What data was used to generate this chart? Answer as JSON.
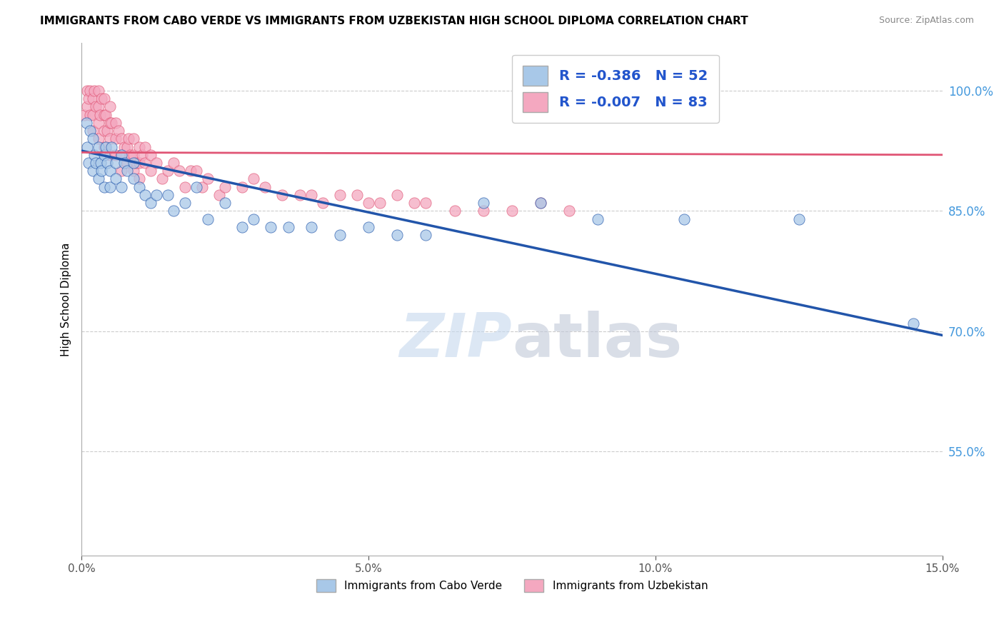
{
  "title": "IMMIGRANTS FROM CABO VERDE VS IMMIGRANTS FROM UZBEKISTAN HIGH SCHOOL DIPLOMA CORRELATION CHART",
  "source": "Source: ZipAtlas.com",
  "ylabel": "High School Diploma",
  "legend_label1": "Immigrants from Cabo Verde",
  "legend_label2": "Immigrants from Uzbekistan",
  "r1": -0.386,
  "n1": 52,
  "r2": -0.007,
  "n2": 83,
  "xmin": 0.0,
  "xmax": 0.15,
  "ymin": 0.42,
  "ymax": 1.06,
  "y_ticks": [
    0.55,
    0.7,
    0.85,
    1.0
  ],
  "x_ticks": [
    0.0,
    0.05,
    0.1,
    0.15
  ],
  "color_blue": "#a8c8e8",
  "color_pink": "#f4a8c0",
  "line_blue": "#2255aa",
  "line_pink": "#e05575",
  "watermark_zip": "ZIP",
  "watermark_atlas": "atlas",
  "cabo_verde_x": [
    0.0008,
    0.001,
    0.0012,
    0.0015,
    0.002,
    0.002,
    0.0022,
    0.0025,
    0.003,
    0.003,
    0.0033,
    0.0035,
    0.004,
    0.004,
    0.0042,
    0.0045,
    0.005,
    0.005,
    0.0052,
    0.006,
    0.006,
    0.007,
    0.007,
    0.0075,
    0.008,
    0.009,
    0.009,
    0.01,
    0.011,
    0.012,
    0.013,
    0.015,
    0.016,
    0.018,
    0.02,
    0.022,
    0.025,
    0.028,
    0.03,
    0.033,
    0.036,
    0.04,
    0.045,
    0.05,
    0.055,
    0.06,
    0.07,
    0.08,
    0.09,
    0.105,
    0.125,
    0.145
  ],
  "cabo_verde_y": [
    0.96,
    0.93,
    0.91,
    0.95,
    0.94,
    0.9,
    0.92,
    0.91,
    0.93,
    0.89,
    0.91,
    0.9,
    0.92,
    0.88,
    0.93,
    0.91,
    0.9,
    0.88,
    0.93,
    0.91,
    0.89,
    0.92,
    0.88,
    0.91,
    0.9,
    0.91,
    0.89,
    0.88,
    0.87,
    0.86,
    0.87,
    0.87,
    0.85,
    0.86,
    0.88,
    0.84,
    0.86,
    0.83,
    0.84,
    0.83,
    0.83,
    0.83,
    0.82,
    0.83,
    0.82,
    0.82,
    0.86,
    0.86,
    0.84,
    0.84,
    0.84,
    0.71
  ],
  "uzbekistan_x": [
    0.0005,
    0.001,
    0.001,
    0.0012,
    0.0015,
    0.0015,
    0.002,
    0.002,
    0.002,
    0.0022,
    0.0025,
    0.003,
    0.003,
    0.003,
    0.003,
    0.0032,
    0.0035,
    0.004,
    0.004,
    0.004,
    0.004,
    0.0042,
    0.0045,
    0.005,
    0.005,
    0.005,
    0.005,
    0.0052,
    0.006,
    0.006,
    0.006,
    0.0065,
    0.007,
    0.007,
    0.007,
    0.0075,
    0.008,
    0.008,
    0.0082,
    0.0085,
    0.009,
    0.009,
    0.009,
    0.0095,
    0.01,
    0.01,
    0.01,
    0.0105,
    0.011,
    0.011,
    0.012,
    0.012,
    0.013,
    0.014,
    0.015,
    0.016,
    0.017,
    0.018,
    0.019,
    0.02,
    0.021,
    0.022,
    0.024,
    0.025,
    0.028,
    0.03,
    0.032,
    0.035,
    0.038,
    0.04,
    0.042,
    0.045,
    0.048,
    0.05,
    0.052,
    0.055,
    0.058,
    0.06,
    0.065,
    0.07,
    0.075,
    0.08,
    0.085
  ],
  "uzbekistan_y": [
    0.97,
    1.0,
    0.98,
    0.99,
    1.0,
    0.97,
    0.99,
    0.97,
    0.95,
    1.0,
    0.98,
    1.0,
    0.98,
    0.96,
    0.94,
    0.97,
    0.99,
    0.99,
    0.97,
    0.95,
    0.93,
    0.97,
    0.95,
    0.98,
    0.96,
    0.94,
    0.92,
    0.96,
    0.96,
    0.94,
    0.92,
    0.95,
    0.94,
    0.92,
    0.9,
    0.93,
    0.93,
    0.91,
    0.94,
    0.92,
    0.94,
    0.92,
    0.9,
    0.91,
    0.93,
    0.91,
    0.89,
    0.92,
    0.93,
    0.91,
    0.92,
    0.9,
    0.91,
    0.89,
    0.9,
    0.91,
    0.9,
    0.88,
    0.9,
    0.9,
    0.88,
    0.89,
    0.87,
    0.88,
    0.88,
    0.89,
    0.88,
    0.87,
    0.87,
    0.87,
    0.86,
    0.87,
    0.87,
    0.86,
    0.86,
    0.87,
    0.86,
    0.86,
    0.85,
    0.85,
    0.85,
    0.86,
    0.85
  ],
  "blue_line_x0": 0.0,
  "blue_line_y0": 0.925,
  "blue_line_x1": 0.15,
  "blue_line_y1": 0.695,
  "pink_line_x0": 0.0,
  "pink_line_y0": 0.923,
  "pink_line_x1": 0.15,
  "pink_line_y1": 0.92
}
